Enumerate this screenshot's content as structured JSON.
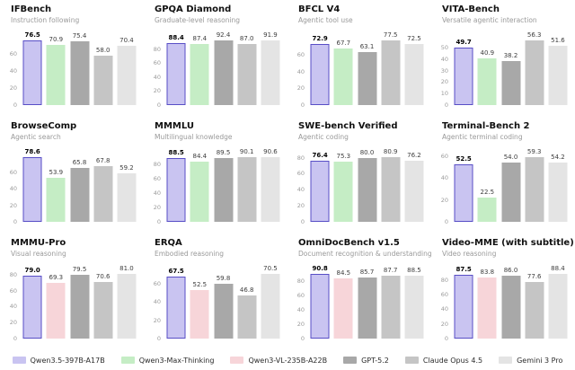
{
  "page": {
    "background": "#ffffff"
  },
  "models": {
    "Qwen3.5-397B-A17B": {
      "fill": "#c9c4f1",
      "border": "#584ec6",
      "highlight": true
    },
    "Qwen3-Max-Thinking": {
      "fill": "#c5edc5"
    },
    "Qwen3-VL-235B-A22B": {
      "fill": "#f7d5d9"
    },
    "GPT-5.2": {
      "fill": "#a8a8a8"
    },
    "Claude Opus 4.5": {
      "fill": "#c5c5c5"
    },
    "Gemini 3 Pro": {
      "fill": "#e4e4e4"
    }
  },
  "legend": {
    "items": [
      {
        "label": "Qwen3.5-397B-A17B",
        "color": "#c9c4f1"
      },
      {
        "label": "Qwen3-Max-Thinking",
        "color": "#c5edc5"
      },
      {
        "label": "Qwen3-VL-235B-A22B",
        "color": "#f7d5d9"
      },
      {
        "label": "GPT-5.2",
        "color": "#a8a8a8"
      },
      {
        "label": "Claude Opus 4.5",
        "color": "#c5c5c5"
      },
      {
        "label": "Gemini 3 Pro",
        "color": "#e4e4e4"
      }
    ]
  },
  "chart_data": [
    {
      "type": "bar",
      "title": "IFBench",
      "subtitle": "Instruction following",
      "yticks": [
        0,
        20,
        40,
        60
      ],
      "grid": false,
      "bars": [
        {
          "model": "Qwen3.5-397B-A17B",
          "value": 76.5,
          "highlight": true
        },
        {
          "model": "Qwen3-Max-Thinking",
          "value": 70.9
        },
        {
          "model": "GPT-5.2",
          "value": 75.4
        },
        {
          "model": "Claude Opus 4.5",
          "value": 58.0
        },
        {
          "model": "Gemini 3 Pro",
          "value": 70.4
        }
      ]
    },
    {
      "type": "bar",
      "title": "GPQA Diamond",
      "subtitle": "Graduate-level reasoning",
      "yticks": [
        0,
        20,
        40,
        60,
        80
      ],
      "grid": false,
      "bars": [
        {
          "model": "Qwen3.5-397B-A17B",
          "value": 88.4,
          "highlight": true
        },
        {
          "model": "Qwen3-Max-Thinking",
          "value": 87.4
        },
        {
          "model": "GPT-5.2",
          "value": 92.4
        },
        {
          "model": "Claude Opus 4.5",
          "value": 87.0
        },
        {
          "model": "Gemini 3 Pro",
          "value": 91.9
        }
      ]
    },
    {
      "type": "bar",
      "title": "BFCL V4",
      "subtitle": "Agentic tool use",
      "yticks": [
        0,
        20,
        40,
        60
      ],
      "grid": false,
      "bars": [
        {
          "model": "Qwen3.5-397B-A17B",
          "value": 72.9,
          "highlight": true
        },
        {
          "model": "Qwen3-Max-Thinking",
          "value": 67.7
        },
        {
          "model": "GPT-5.2",
          "value": 63.1
        },
        {
          "model": "Claude Opus 4.5",
          "value": 77.5
        },
        {
          "model": "Gemini 3 Pro",
          "value": 72.5
        }
      ]
    },
    {
      "type": "bar",
      "title": "VITA-Bench",
      "subtitle": "Versatile agentic interaction",
      "yticks": [
        0,
        10,
        20,
        30,
        40,
        50
      ],
      "grid": false,
      "bars": [
        {
          "model": "Qwen3.5-397B-A17B",
          "value": 49.7,
          "highlight": true
        },
        {
          "model": "Qwen3-Max-Thinking",
          "value": 40.9
        },
        {
          "model": "GPT-5.2",
          "value": 38.2
        },
        {
          "model": "Claude Opus 4.5",
          "value": 56.3
        },
        {
          "model": "Gemini 3 Pro",
          "value": 51.6
        }
      ]
    },
    {
      "type": "bar",
      "title": "BrowseComp",
      "subtitle": "Agentic search",
      "yticks": [
        0,
        20,
        40,
        60
      ],
      "grid": false,
      "bars": [
        {
          "model": "Qwen3.5-397B-A17B",
          "value": 78.6,
          "highlight": true
        },
        {
          "model": "Qwen3-Max-Thinking",
          "value": 53.9
        },
        {
          "model": "GPT-5.2",
          "value": 65.8
        },
        {
          "model": "Claude Opus 4.5",
          "value": 67.8
        },
        {
          "model": "Gemini 3 Pro",
          "value": 59.2
        }
      ]
    },
    {
      "type": "bar",
      "title": "MMMLU",
      "subtitle": "Multilingual knowledge",
      "yticks": [
        0,
        20,
        40,
        60,
        80
      ],
      "grid": false,
      "bars": [
        {
          "model": "Qwen3.5-397B-A17B",
          "value": 88.5,
          "highlight": true
        },
        {
          "model": "Qwen3-Max-Thinking",
          "value": 84.4
        },
        {
          "model": "GPT-5.2",
          "value": 89.5
        },
        {
          "model": "Claude Opus 4.5",
          "value": 90.1
        },
        {
          "model": "Gemini 3 Pro",
          "value": 90.6
        }
      ]
    },
    {
      "type": "bar",
      "title": "SWE-bench Verified",
      "subtitle": "Agentic coding",
      "yticks": [
        0,
        20,
        40,
        60,
        80
      ],
      "grid": false,
      "bars": [
        {
          "model": "Qwen3.5-397B-A17B",
          "value": 76.4,
          "highlight": true
        },
        {
          "model": "Qwen3-Max-Thinking",
          "value": 75.3
        },
        {
          "model": "GPT-5.2",
          "value": 80.0
        },
        {
          "model": "Claude Opus 4.5",
          "value": 80.9
        },
        {
          "model": "Gemini 3 Pro",
          "value": 76.2
        }
      ]
    },
    {
      "type": "bar",
      "title": "Terminal-Bench 2",
      "subtitle": "Agentic terminal coding",
      "yticks": [
        0,
        20,
        40,
        60
      ],
      "grid": false,
      "bars": [
        {
          "model": "Qwen3.5-397B-A17B",
          "value": 52.5,
          "highlight": true
        },
        {
          "model": "Qwen3-Max-Thinking",
          "value": 22.5
        },
        {
          "model": "GPT-5.2",
          "value": 54.0
        },
        {
          "model": "Claude Opus 4.5",
          "value": 59.3
        },
        {
          "model": "Gemini 3 Pro",
          "value": 54.2
        }
      ]
    },
    {
      "type": "bar",
      "title": "MMMU-Pro",
      "subtitle": "Visual reasoning",
      "yticks": [
        0,
        20,
        40,
        60,
        80
      ],
      "grid": false,
      "bars": [
        {
          "model": "Qwen3.5-397B-A17B",
          "value": 79.0,
          "highlight": true
        },
        {
          "model": "Qwen3-VL-235B-A22B",
          "value": 69.3
        },
        {
          "model": "GPT-5.2",
          "value": 79.5
        },
        {
          "model": "Claude Opus 4.5",
          "value": 70.6
        },
        {
          "model": "Gemini 3 Pro",
          "value": 81.0
        }
      ]
    },
    {
      "type": "bar",
      "title": "ERQA",
      "subtitle": "Embodied reasoning",
      "yticks": [
        0,
        20,
        40,
        60
      ],
      "grid": false,
      "bars": [
        {
          "model": "Qwen3.5-397B-A17B",
          "value": 67.5,
          "highlight": true
        },
        {
          "model": "Qwen3-VL-235B-A22B",
          "value": 52.5
        },
        {
          "model": "GPT-5.2",
          "value": 59.8
        },
        {
          "model": "Claude Opus 4.5",
          "value": 46.8
        },
        {
          "model": "Gemini 3 Pro",
          "value": 70.5
        }
      ]
    },
    {
      "type": "bar",
      "title": "OmniDocBench v1.5",
      "subtitle": "Document recognition & understanding",
      "yticks": [
        0,
        20,
        40,
        60,
        80
      ],
      "grid": false,
      "bars": [
        {
          "model": "Qwen3.5-397B-A17B",
          "value": 90.8,
          "highlight": true
        },
        {
          "model": "Qwen3-VL-235B-A22B",
          "value": 84.5
        },
        {
          "model": "GPT-5.2",
          "value": 85.7
        },
        {
          "model": "Claude Opus 4.5",
          "value": 87.7
        },
        {
          "model": "Gemini 3 Pro",
          "value": 88.5
        }
      ]
    },
    {
      "type": "bar",
      "title": "Video-MME (with subtitle)",
      "subtitle": "Video reasoning",
      "yticks": [
        0,
        20,
        40,
        60,
        80
      ],
      "grid": false,
      "bars": [
        {
          "model": "Qwen3.5-397B-A17B",
          "value": 87.5,
          "highlight": true
        },
        {
          "model": "Qwen3-VL-235B-A22B",
          "value": 83.8
        },
        {
          "model": "GPT-5.2",
          "value": 86.0
        },
        {
          "model": "Claude Opus 4.5",
          "value": 77.6
        },
        {
          "model": "Gemini 3 Pro",
          "value": 88.4
        }
      ]
    }
  ]
}
